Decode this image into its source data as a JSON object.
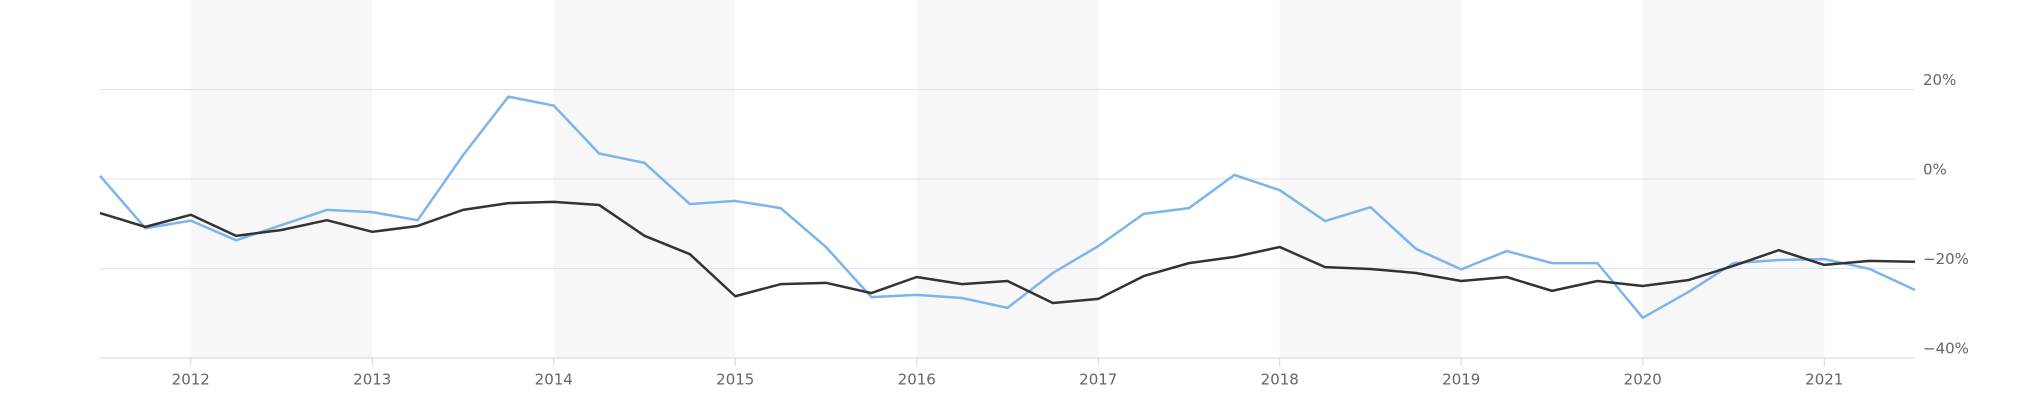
{
  "chart_data": {
    "type": "line",
    "x": [
      2011.5,
      2011.75,
      2012,
      2012.25,
      2012.5,
      2012.75,
      2013,
      2013.25,
      2013.5,
      2013.75,
      2014,
      2014.25,
      2014.5,
      2014.75,
      2015,
      2015.25,
      2015.5,
      2015.75,
      2016,
      2016.25,
      2016.5,
      2016.75,
      2017,
      2017.25,
      2017.5,
      2017.75,
      2018,
      2018.25,
      2018.5,
      2018.75,
      2019,
      2019.25,
      2019.5,
      2019.75,
      2020,
      2020.25,
      2020.5,
      2020.75,
      2021,
      2021.25,
      2021.5
    ],
    "series": [
      {
        "color": "#7cb5ec",
        "values": [
          0.7,
          -11,
          -9.3,
          -13.7,
          -10.3,
          -6.9,
          -7.4,
          -9.2,
          5.3,
          18.4,
          16.4,
          5.7,
          3.6,
          -5.6,
          -4.9,
          -6.5,
          -15.2,
          -26.4,
          -25.9,
          -26.6,
          -28.8,
          -21,
          -15,
          -7.8,
          -6.5,
          0.9,
          -2.5,
          -9.4,
          -6.3,
          -15.6,
          -20.2,
          -16.1,
          -18.8,
          -18.8,
          -31,
          -25.3,
          -18.8,
          -18.1,
          -17.9,
          -20.1,
          -24.8
        ]
      },
      {
        "color": "#333333",
        "values": [
          -7.6,
          -10.7,
          -8,
          -12.7,
          -11.4,
          -9.2,
          -11.8,
          -10.5,
          -6.9,
          -5.4,
          -5.1,
          -5.8,
          -12.7,
          -16.8,
          -26.2,
          -23.5,
          -23.2,
          -25.5,
          -21.9,
          -23.5,
          -22.8,
          -27.7,
          -26.8,
          -21.7,
          -18.8,
          -17.4,
          -15.2,
          -19.7,
          -20.1,
          -21,
          -22.8,
          -21.9,
          -25,
          -22.8,
          -23.9,
          -22.6,
          -19.4,
          -15.9,
          -19.2,
          -18.3,
          -18.5
        ]
      }
    ],
    "xlim": [
      2011.5,
      2021.5
    ],
    "xticks": [
      2012,
      2013,
      2014,
      2015,
      2016,
      2017,
      2018,
      2019,
      2020,
      2021
    ],
    "ylim": [
      -40,
      40
    ],
    "yticks": [
      {
        "value": -40,
        "label": "−40%"
      },
      {
        "value": -20,
        "label": "−20%"
      },
      {
        "value": 0,
        "label": "0%"
      },
      {
        "value": 20,
        "label": "20%"
      }
    ],
    "grid": true
  }
}
